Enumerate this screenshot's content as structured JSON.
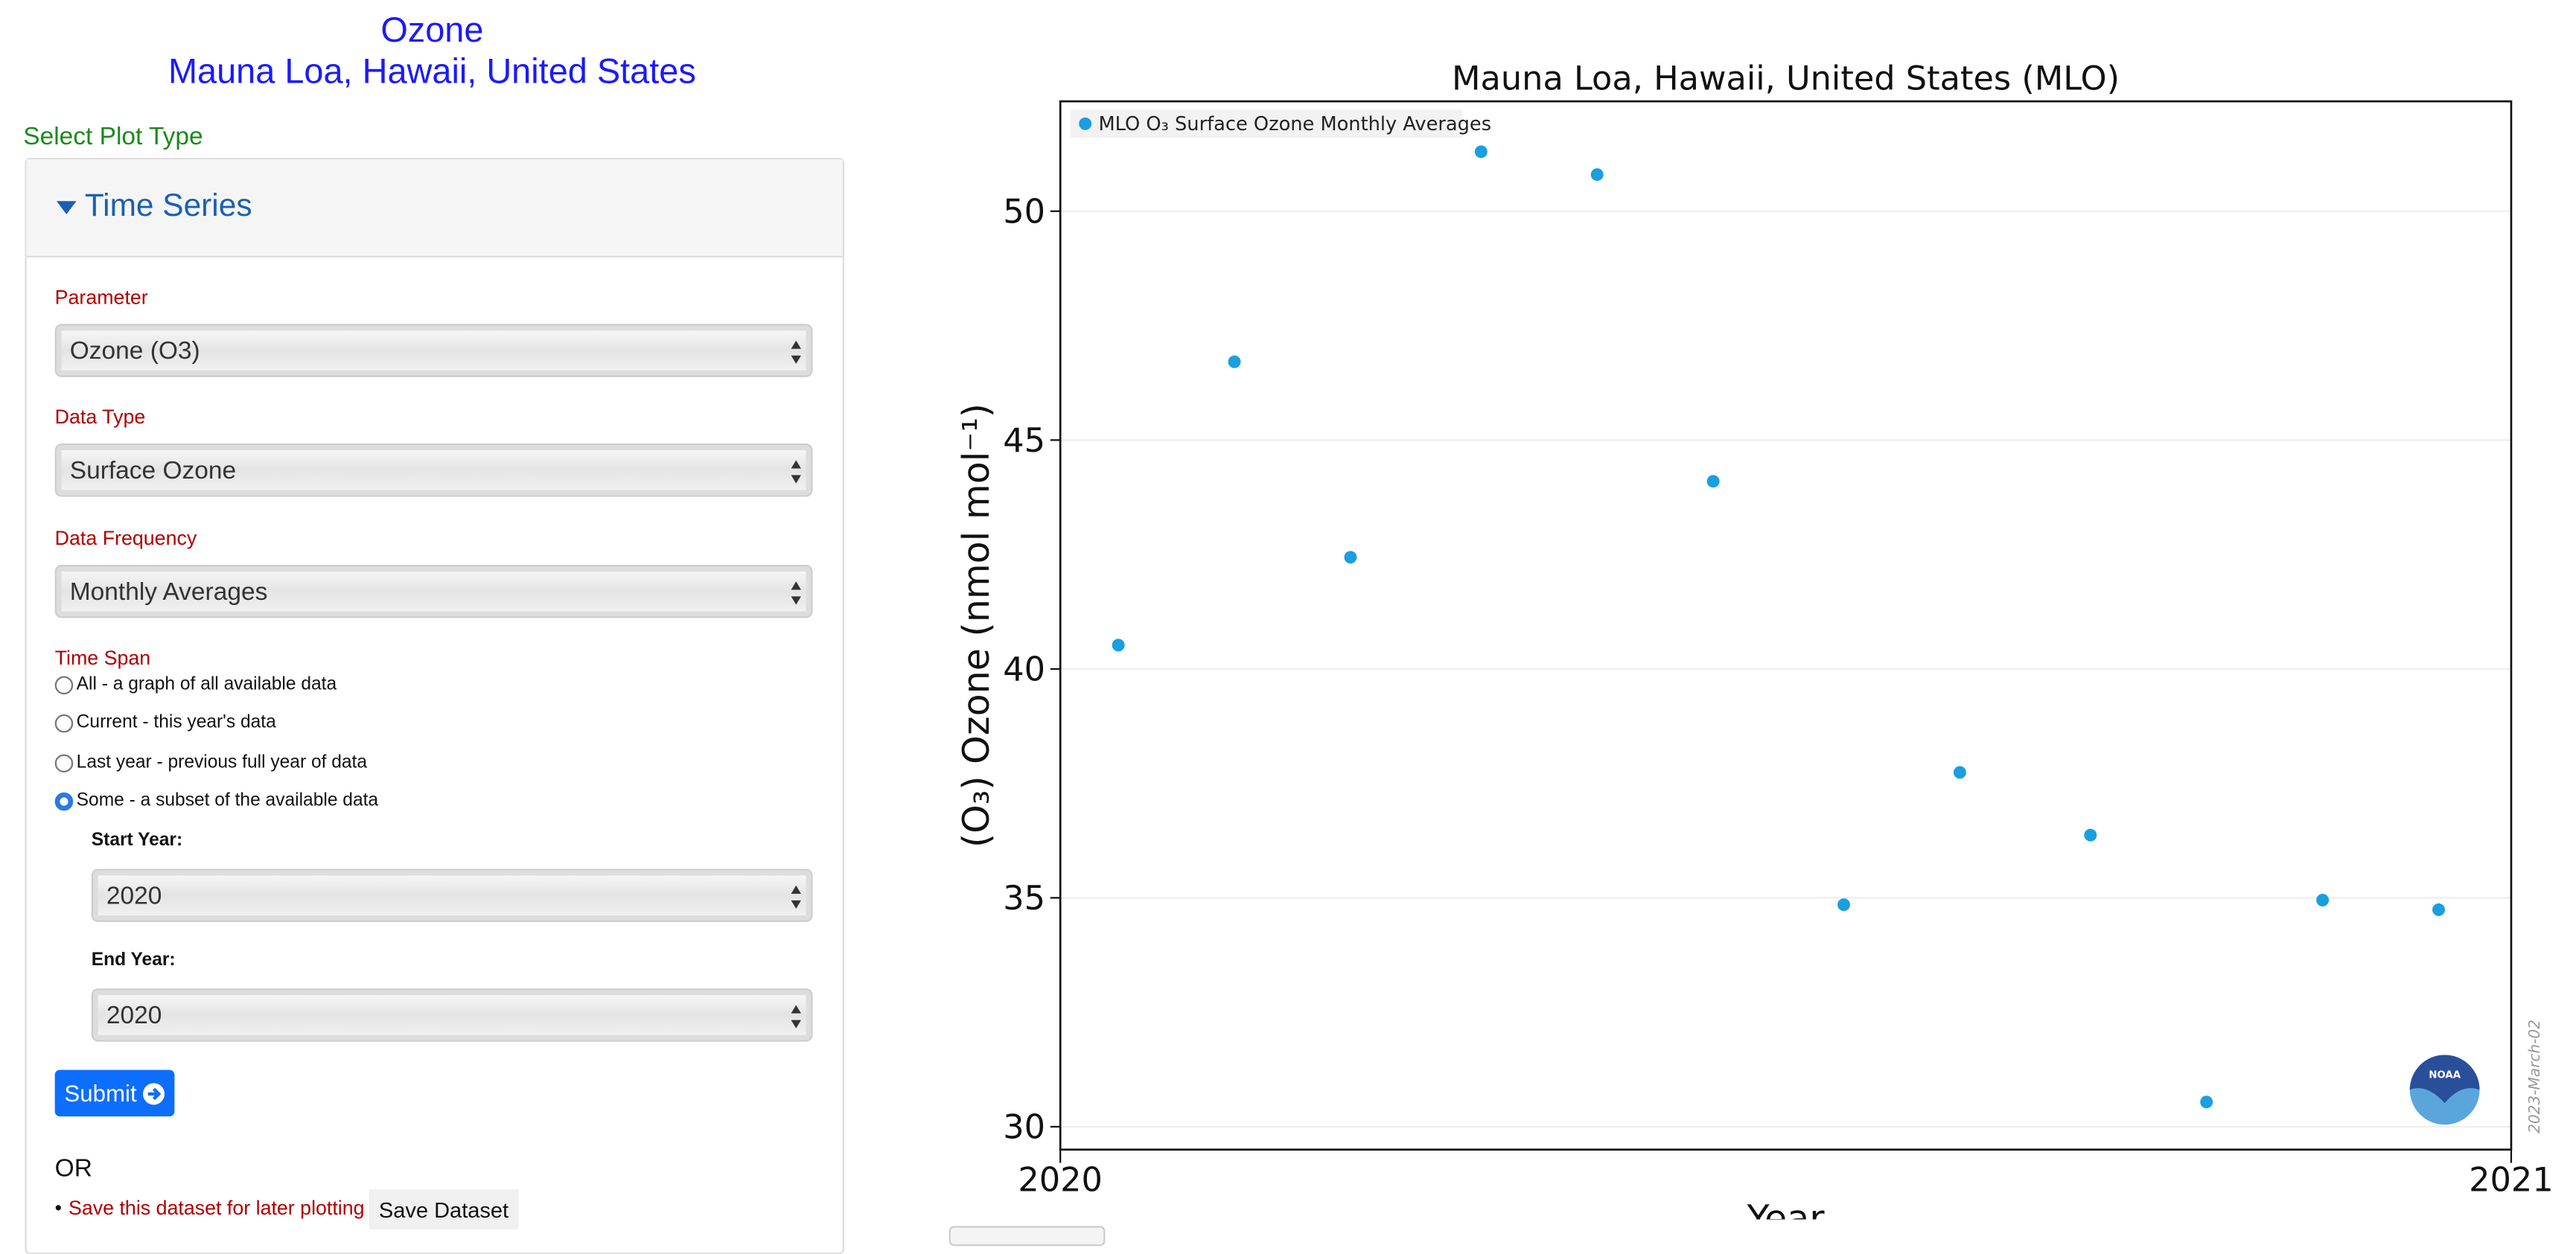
{
  "header": {
    "title": "Ozone",
    "subtitle": "Mauna Loa, Hawaii, United States"
  },
  "form": {
    "plot_type_label": "Select Plot Type",
    "panel_title": "Time Series",
    "fields": [
      {
        "label": "Parameter",
        "value": "Ozone (O3)"
      },
      {
        "label": "Data Type",
        "value": "Surface Ozone"
      },
      {
        "label": "Data Frequency",
        "value": "Monthly Averages"
      }
    ],
    "time_span_label": "Time Span",
    "options": [
      "All - a graph of all available data",
      "Current - this year's data",
      "Last year - previous full year of data",
      "Some - a subset of the available data"
    ],
    "start_year_label": "Start Year:",
    "start_year": "2020",
    "end_year_label": "End Year:",
    "end_year": "2020",
    "submit": "Submit",
    "or": "OR",
    "save_text": "Save this dataset for later plotting",
    "save_button": "Save Dataset"
  },
  "chart_data": {
    "type": "scatter",
    "title": "Mauna Loa, Hawaii, United States (MLO)",
    "x_label": "Year",
    "y_label": "(O₃) Ozone (nmol mol⁻¹)",
    "series": [
      {
        "name": "MLO O₃ Surface Ozone Monthly Averages",
        "color": "#1a9fe0",
        "x": [
          2020.04,
          2020.12,
          2020.2,
          2020.29,
          2020.37,
          2020.45,
          2020.54,
          2020.62,
          2020.71,
          2020.79,
          2020.87,
          2020.95
        ],
        "values": [
          40.52,
          46.71,
          42.44,
          51.3,
          50.8,
          44.1,
          34.85,
          37.74,
          36.37,
          30.54,
          34.95,
          34.74
        ]
      }
    ],
    "xlim": [
      2020,
      2021
    ],
    "xticks": [
      2020,
      2021
    ],
    "ylim": [
      29.5,
      52.4
    ],
    "yticks": [
      30,
      35,
      40,
      45,
      50
    ],
    "grid": true,
    "legend": "upper left",
    "watermark": "2023-March-02",
    "logo_text": "NOAA"
  }
}
